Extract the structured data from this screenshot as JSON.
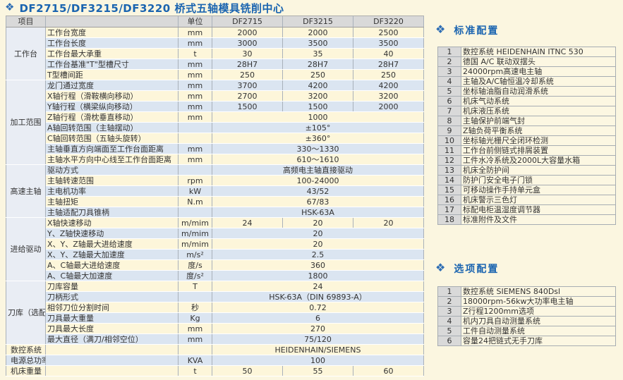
{
  "page": {
    "title": "DF2715/DF3215/DF3220 桥式五轴模具铣削中心",
    "accent_color": "#1a64b0",
    "background_color": "#fbf6e0"
  },
  "spec_table": {
    "headers": [
      "项目",
      "",
      "单位",
      "DF2715",
      "DF3215",
      "DF3220"
    ],
    "rows": [
      {
        "group": "工作台",
        "group_span": 5,
        "param": "工作台宽度",
        "unit": "mm",
        "values": [
          "2000",
          "2000",
          "2500"
        ]
      },
      {
        "param": "工作台长度",
        "unit": "mm",
        "values": [
          "3000",
          "3500",
          "3500"
        ]
      },
      {
        "param": "工作台最大承重",
        "unit": "t",
        "values": [
          "30",
          "35",
          "40"
        ]
      },
      {
        "param": "工作台基准\"T\"型槽尺寸",
        "unit": "mm",
        "values": [
          "28H7",
          "28H7",
          "28H7"
        ]
      },
      {
        "param": "T型槽间距",
        "unit": "mm",
        "values": [
          "250",
          "250",
          "250"
        ]
      },
      {
        "group": "加工范围",
        "group_span": 8,
        "param": "龙门通过宽度",
        "unit": "mm",
        "values": [
          "3700",
          "4200",
          "4200"
        ]
      },
      {
        "param": "X轴行程（滑鞍横向移动）",
        "unit": "mm",
        "values": [
          "2700",
          "3200",
          "3200"
        ]
      },
      {
        "param": "Y轴行程（横梁纵向移动）",
        "unit": "mm",
        "values": [
          "1500",
          "1500",
          "2000"
        ]
      },
      {
        "param": "Z轴行程（滑枕垂直移动）",
        "unit": "mm",
        "values": [
          "1000"
        ]
      },
      {
        "param": "A轴回转范围（主轴摆动）",
        "unit": "",
        "values": [
          "±105°"
        ]
      },
      {
        "param": "C轴回转范围（五轴头旋转）",
        "unit": "",
        "values": [
          "±360°"
        ]
      },
      {
        "param": "主轴垂直方向端面至工作台面距离",
        "unit": "mm",
        "values": [
          "330～1330"
        ]
      },
      {
        "param": "主轴水平方向中心线至工作台面距离",
        "unit": "mm",
        "values": [
          "610～1610"
        ]
      },
      {
        "group": "高速主轴",
        "group_span": 5,
        "param": "驱动方式",
        "unit": "",
        "values": [
          "高频电主轴直接驱动"
        ]
      },
      {
        "param": "主轴转速范围",
        "unit": "rpm",
        "values": [
          "100-24000"
        ]
      },
      {
        "param": "主电机功率",
        "unit": "kW",
        "values": [
          "43/52"
        ]
      },
      {
        "param": "主轴扭矩",
        "unit": "N.m",
        "values": [
          "67/83"
        ]
      },
      {
        "param": "主轴适配刀具锥柄",
        "unit": "",
        "values": [
          "HSK-63A"
        ]
      },
      {
        "group": "进给驱动",
        "group_span": 6,
        "param": "X轴快速移动",
        "unit": "m/mim",
        "values": [
          "24",
          "20",
          "20"
        ]
      },
      {
        "param": "Y、Z轴快速移动",
        "unit": "m/mim",
        "values": [
          "20"
        ]
      },
      {
        "param": "X、Y、Z轴最大进给速度",
        "unit": "m/mim",
        "values": [
          "20"
        ]
      },
      {
        "param": "X、Y、Z轴最大加速度",
        "unit": "m/s²",
        "values": [
          "2.5"
        ]
      },
      {
        "param": "A、C轴最大进给速度",
        "unit": "度/s",
        "values": [
          "360"
        ]
      },
      {
        "param": "A、C轴最大加速度",
        "unit": "度/s²",
        "values": [
          "1800"
        ]
      },
      {
        "group": "刀库（选配）",
        "group_span": 6,
        "param": "刀库容量",
        "unit": "T",
        "values": [
          "24"
        ]
      },
      {
        "param": "刀柄形式",
        "unit": "",
        "values": [
          "HSK-63A（DIN 69893-A）"
        ]
      },
      {
        "param": "相邻刀位分割时间",
        "unit": "秒",
        "values": [
          "0.72"
        ]
      },
      {
        "param": "刀具最大重量",
        "unit": "Kg",
        "values": [
          "6"
        ]
      },
      {
        "param": "刀具最大长度",
        "unit": "mm",
        "values": [
          "270"
        ]
      },
      {
        "param": "最大直径（满刀/相邻空位）",
        "unit": "mm",
        "values": [
          "75/120"
        ]
      },
      {
        "group": "数控系统",
        "group_span": 1,
        "param": "",
        "unit": "",
        "values": [
          "HEIDENHAIN/SIEMENS"
        ]
      },
      {
        "group": "电源总功率",
        "group_span": 1,
        "param": "",
        "unit": "KVA",
        "values": [
          "100"
        ]
      },
      {
        "group": "机床重量",
        "group_span": 1,
        "param": "",
        "unit": "t",
        "values": [
          "50",
          "55",
          "60"
        ]
      }
    ]
  },
  "standard_config": {
    "heading": "标准配置",
    "items": [
      {
        "no": "1",
        "text": "数控系统 HEIDENHAIN ITNC 530"
      },
      {
        "no": "2",
        "text": "德国 A/C 联动双摆头"
      },
      {
        "no": "3",
        "text": "24000rpm高速电主轴"
      },
      {
        "no": "4",
        "text": "主轴及A/C轴恒温冷却系统"
      },
      {
        "no": "5",
        "text": "坐标轴油脂自动润滑系统"
      },
      {
        "no": "6",
        "text": "机床气动系统"
      },
      {
        "no": "7",
        "text": "机床液压系统"
      },
      {
        "no": "8",
        "text": "主轴保护前端气封"
      },
      {
        "no": "9",
        "text": "Z轴负荷平衡系统"
      },
      {
        "no": "10",
        "text": "坐标轴光栅尺全闭环检测"
      },
      {
        "no": "11",
        "text": "工作台前侧链式排屑装置"
      },
      {
        "no": "12",
        "text": "工件水冷系统及2000L大容量水箱"
      },
      {
        "no": "13",
        "text": "机床全防护间"
      },
      {
        "no": "14",
        "text": "防护门安全电子门锁"
      },
      {
        "no": "15",
        "text": "可移动操作手持单元盒"
      },
      {
        "no": "16",
        "text": "机床警示三色灯"
      },
      {
        "no": "17",
        "text": "标配电柜温湿度调节器"
      },
      {
        "no": "18",
        "text": "标准附件及文件"
      }
    ]
  },
  "optional_config": {
    "heading": "选项配置",
    "items": [
      {
        "no": "1",
        "text": "数控系统 SIEMENS 840Dsl"
      },
      {
        "no": "2",
        "text": "18000rpm-56kw大功率电主轴"
      },
      {
        "no": "3",
        "text": "Z行程1200mm选项"
      },
      {
        "no": "4",
        "text": "机内刀具自动测量系统"
      },
      {
        "no": "5",
        "text": "工件自动测量系统"
      },
      {
        "no": "6",
        "text": "容量24把链式无手刀库"
      }
    ]
  },
  "icons": {
    "diamond": "❖"
  }
}
